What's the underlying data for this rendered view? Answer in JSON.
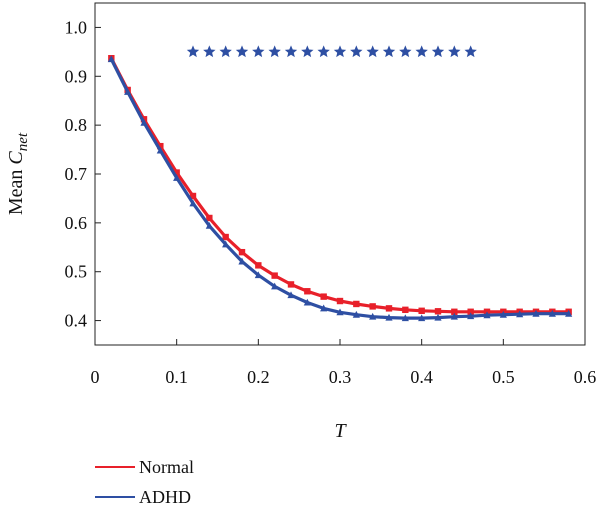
{
  "chart_data": {
    "type": "line",
    "xlabel": "T",
    "ylabel": {
      "prefix": "Mean ",
      "main": "C",
      "sub": "net"
    },
    "xlim": [
      0,
      0.6
    ],
    "ylim": [
      0.35,
      1.05
    ],
    "xticks": [
      0,
      0.1,
      0.2,
      0.3,
      0.4,
      0.5,
      0.6
    ],
    "xtick_labels": [
      "0",
      "0.1",
      "0.2",
      "0.3",
      "0.4",
      "0.5",
      "0.6"
    ],
    "yticks": [
      0.4,
      0.5,
      0.6,
      0.7,
      0.8,
      0.9,
      1.0
    ],
    "ytick_labels": [
      "0.4",
      "0.5",
      "0.6",
      "0.7",
      "0.8",
      "0.9",
      "1.0"
    ],
    "grid": false,
    "legend": {
      "placement": "below-left"
    },
    "x": [
      0.02,
      0.04,
      0.06,
      0.08,
      0.1,
      0.12,
      0.14,
      0.16,
      0.18,
      0.2,
      0.22,
      0.24,
      0.26,
      0.28,
      0.3,
      0.32,
      0.34,
      0.36,
      0.38,
      0.4,
      0.42,
      0.44,
      0.46,
      0.48,
      0.5,
      0.52,
      0.54,
      0.56,
      0.58
    ],
    "series": [
      {
        "name": "Normal",
        "color": "#e8202a",
        "values": [
          0.937,
          0.872,
          0.812,
          0.757,
          0.703,
          0.655,
          0.61,
          0.571,
          0.54,
          0.513,
          0.492,
          0.474,
          0.46,
          0.449,
          0.44,
          0.434,
          0.429,
          0.425,
          0.422,
          0.42,
          0.419,
          0.418,
          0.418,
          0.418,
          0.418,
          0.418,
          0.418,
          0.418,
          0.418
        ]
      },
      {
        "name": "ADHD",
        "color": "#2e4fa3",
        "values": [
          0.935,
          0.868,
          0.805,
          0.748,
          0.692,
          0.64,
          0.594,
          0.556,
          0.521,
          0.493,
          0.47,
          0.452,
          0.437,
          0.425,
          0.417,
          0.412,
          0.408,
          0.406,
          0.405,
          0.405,
          0.406,
          0.408,
          0.409,
          0.411,
          0.412,
          0.413,
          0.414,
          0.414,
          0.414
        ]
      }
    ],
    "significance_markers": {
      "symbol": "star",
      "color": "#2e4fa3",
      "y": 0.95,
      "x": [
        0.12,
        0.14,
        0.16,
        0.18,
        0.2,
        0.22,
        0.24,
        0.26,
        0.28,
        0.3,
        0.32,
        0.34,
        0.36,
        0.38,
        0.4,
        0.42,
        0.44,
        0.46
      ]
    }
  }
}
